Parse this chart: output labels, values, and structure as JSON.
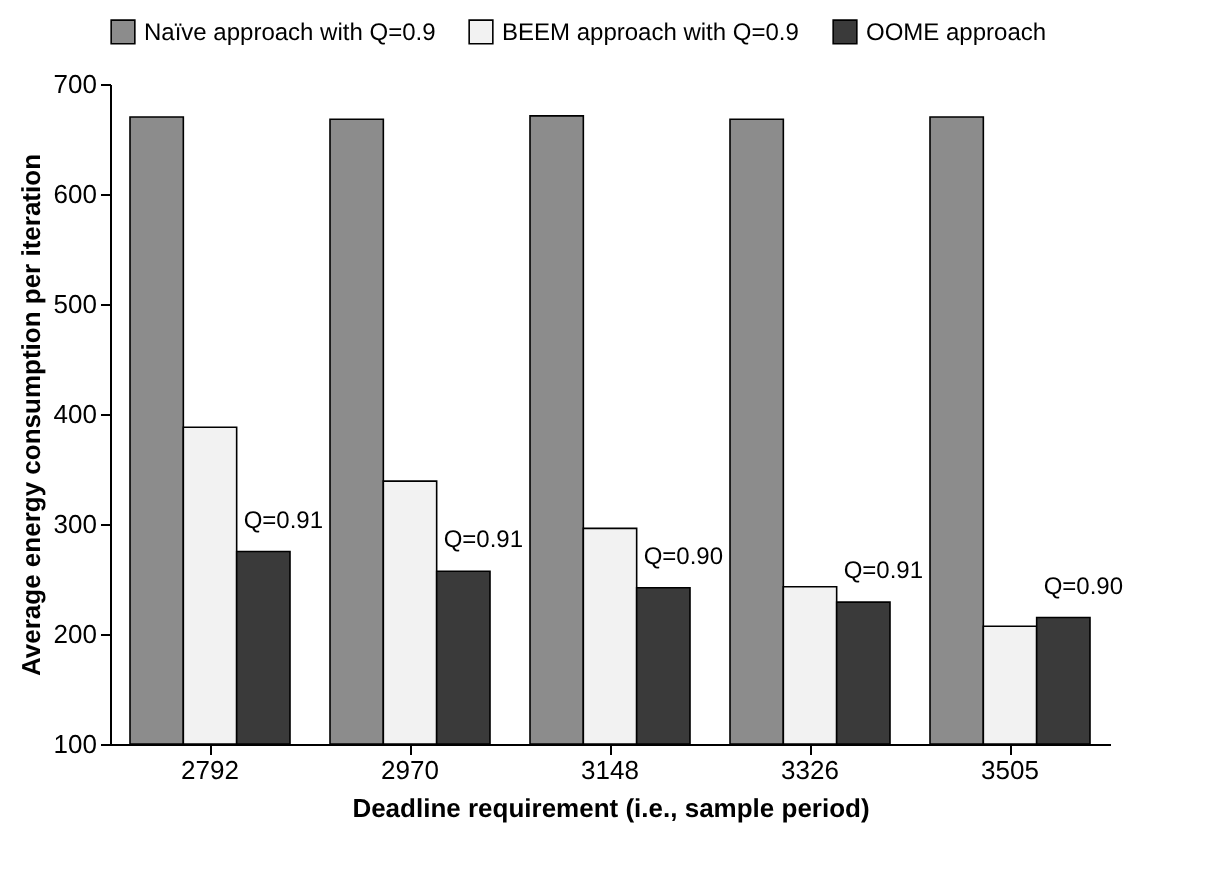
{
  "chart_data": {
    "type": "bar",
    "xlabel": "Deadline requirement (i.e., sample period)",
    "ylabel": "Average energy consumption per iteration",
    "categories": [
      "2792",
      "2970",
      "3148",
      "3326",
      "3505"
    ],
    "series": [
      {
        "name": "Naïve approach with Q=0.9",
        "color": "#8c8c8c",
        "values": [
          670,
          668,
          671,
          668,
          670
        ]
      },
      {
        "name": "BEEM approach with Q=0.9",
        "color": "#f2f2f2",
        "values": [
          388,
          339,
          296,
          243,
          207
        ]
      },
      {
        "name": "OOME approach",
        "color": "#3a3a3a",
        "values": [
          275,
          257,
          242,
          229,
          215
        ]
      }
    ],
    "ylim": [
      100,
      700
    ],
    "yticks": [
      100,
      200,
      300,
      400,
      500,
      600,
      700
    ],
    "grid": false,
    "legend": "top",
    "annotations": [
      "Q=0.91",
      "Q=0.91",
      "Q=0.90",
      "Q=0.91",
      "Q=0.90"
    ]
  }
}
